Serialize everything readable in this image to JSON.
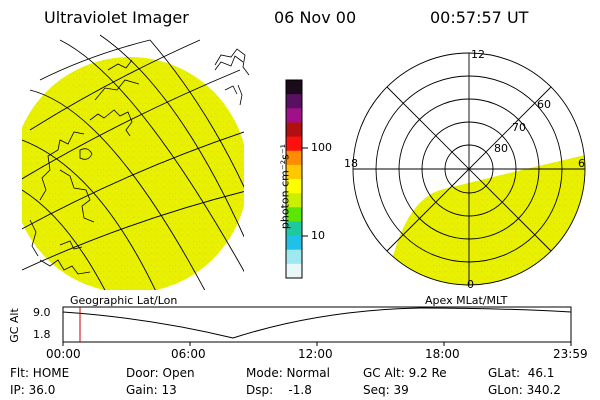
{
  "header": {
    "instrument": "Ultraviolet Imager",
    "date": "06 Nov 00",
    "time": "00:57:57 UT"
  },
  "colorbar": {
    "unit_label": "photon cm⁻²s⁻¹",
    "tick_100": "100",
    "tick_10": "10",
    "colors_top_to_bottom": [
      "#1a0a1a",
      "#5a1060",
      "#a0108a",
      "#b01010",
      "#ff1010",
      "#ff8c00",
      "#ffc800",
      "#ffff00",
      "#c8f000",
      "#5ae600",
      "#20c8a0",
      "#20c0e8",
      "#a0e8f0",
      "#e8f8f8"
    ]
  },
  "panels": {
    "left_label": "Geographic Lat/Lon",
    "right_label": "Apex MLat/MLT",
    "polar": {
      "top": "12",
      "left": "18",
      "right": "6",
      "bottom": "0",
      "lat_60": "60",
      "lat_70": "70",
      "lat_80": "80"
    },
    "image_color": "#e8f000"
  },
  "altitude_plot": {
    "ylabel": "GC Alt",
    "ytick_top": "9.0",
    "ytick_bottom": "1.8",
    "xticks": [
      "00:00",
      "06:00",
      "12:00",
      "18:00",
      "23:59"
    ],
    "marker_color": "#cc0000"
  },
  "status": {
    "flt": "Flt: HOME",
    "ip": "IP: 36.0",
    "door": "Door: Open",
    "gain": "Gain: 13",
    "mode": "Mode: Normal",
    "dsp": "Dsp:    -1.8",
    "gc_alt": "GC Alt: 9.2 Re",
    "seq": "Seq: 39",
    "glat": "GLat:  46.1",
    "glon": "GLon: 340.2"
  }
}
